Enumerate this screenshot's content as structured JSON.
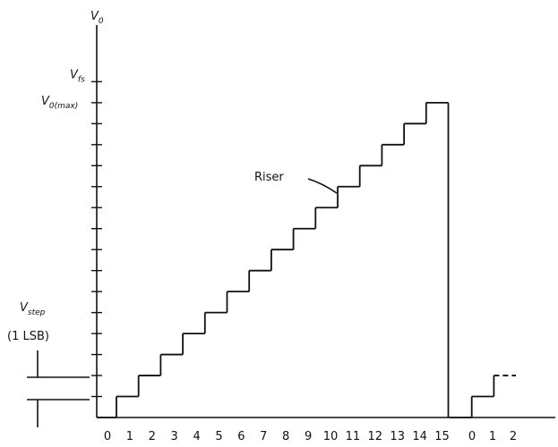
{
  "chart_data": {
    "type": "step",
    "y_label": {
      "text": "V",
      "sub": "0"
    },
    "y_annotations": [
      {
        "value": 16,
        "text": "V",
        "sub": "fs"
      },
      {
        "value": 15,
        "text": "V",
        "sub": "0(max)"
      }
    ],
    "step_annotation": {
      "text": "V",
      "sub": "step",
      "note": "(1 LSB)"
    },
    "riser_label": "Riser",
    "ylim": [
      0,
      18.7
    ],
    "yticks": [
      1,
      2,
      3,
      4,
      5,
      6,
      7,
      8,
      9,
      10,
      11,
      12,
      13,
      14,
      15,
      16
    ],
    "series": [
      {
        "categories": [
          "0",
          "1",
          "2",
          "3",
          "4",
          "5",
          "6",
          "7",
          "8",
          "9",
          "10",
          "11",
          "12",
          "13",
          "14",
          "15"
        ],
        "values": [
          0,
          1,
          2,
          3,
          4,
          5,
          6,
          7,
          8,
          9,
          10,
          11,
          12,
          13,
          14,
          15
        ],
        "dashed_last": false
      },
      {
        "categories": [
          "0",
          "1",
          "2"
        ],
        "values": [
          0,
          1,
          2
        ],
        "dashed_last": true
      }
    ],
    "color": "#111111"
  }
}
